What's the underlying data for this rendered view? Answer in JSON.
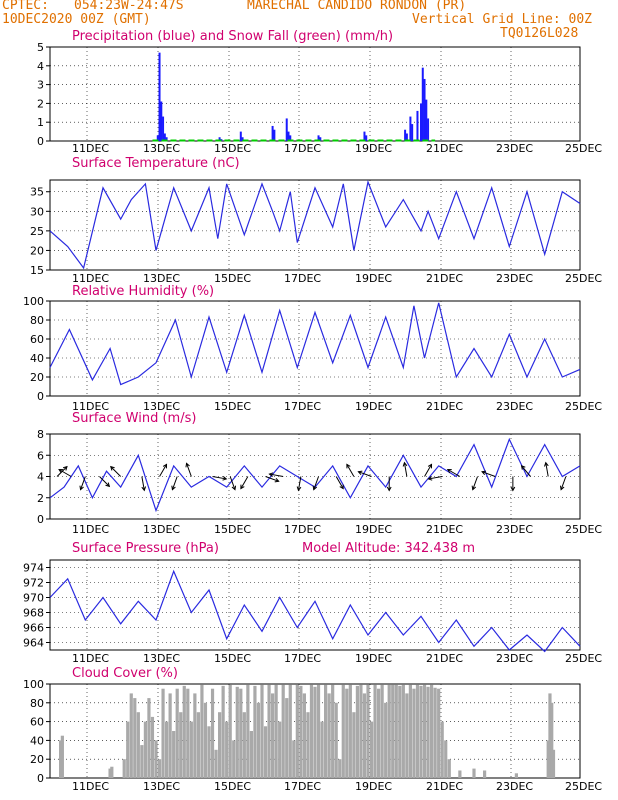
{
  "header": {
    "source": "CPTEC:",
    "coords": "054:23W-24:47S",
    "station": "MARECHAL CANDIDO RONDON (PR)",
    "init": "10DEC2020 00Z (GMT)",
    "grid_note": "Vertical Grid Line: 00Z",
    "code": "TQ0126L028"
  },
  "colors": {
    "header": "#e07000",
    "title": "#d0006e",
    "precip": "#1a1aff",
    "snow": "#00cc00",
    "line": "#2a2ae0",
    "cloud": "#a9a9a9"
  },
  "x_ticks": [
    "11DEC",
    "13DEC",
    "15DEC",
    "17DEC",
    "19DEC",
    "21DEC",
    "23DEC",
    "25DEC"
  ],
  "chart_data": [
    {
      "type": "bar",
      "title": "Precipitation (blue) and Snow Fall (green) (mm/h)",
      "ylim": [
        0,
        5
      ],
      "yticks": [
        "0",
        "1",
        "2",
        "3",
        "4",
        "5"
      ],
      "x_unit": "days since 10DEC 00Z",
      "series": [
        {
          "name": "Precipitation",
          "x": [
            3.05,
            3.1,
            3.15,
            3.2,
            3.25,
            3.3,
            4.8,
            4.85,
            5.4,
            5.45,
            6.3,
            6.35,
            6.7,
            6.75,
            6.8,
            7.6,
            7.65,
            8.9,
            8.95,
            10.05,
            10.1,
            10.2,
            10.25,
            10.4,
            10.5,
            10.55,
            10.6,
            10.65,
            10.7
          ],
          "values": [
            0.3,
            4.7,
            2.1,
            1.3,
            0.4,
            0.2,
            0.2,
            0.1,
            0.5,
            0.2,
            0.8,
            0.6,
            1.2,
            0.5,
            0.3,
            0.3,
            0.2,
            0.5,
            0.3,
            0.6,
            0.4,
            1.3,
            0.9,
            1.6,
            2.0,
            3.9,
            3.3,
            2.2,
            1.2
          ]
        },
        {
          "name": "Snow Fall",
          "values": [
            0
          ]
        }
      ]
    },
    {
      "type": "line",
      "title": "Surface Temperature (nC)",
      "ylim": [
        15,
        38
      ],
      "yticks": [
        "15",
        "20",
        "25",
        "30",
        "35"
      ],
      "series": [
        {
          "name": "Temperature",
          "x": [
            0,
            0.5,
            0.95,
            1.5,
            2,
            2.3,
            2.7,
            3,
            3.5,
            4,
            4.5,
            4.75,
            5,
            5.5,
            6,
            6.3,
            6.5,
            6.8,
            7,
            7.5,
            8,
            8.3,
            8.6,
            9,
            9.5,
            10,
            10.5,
            10.7,
            11,
            11.5,
            12,
            12.5,
            13,
            13.5,
            14,
            14.5,
            15
          ],
          "values": [
            25,
            21,
            15.5,
            36,
            28,
            33,
            37,
            20,
            36,
            25,
            36,
            23,
            37,
            24,
            37,
            30,
            25,
            35,
            22,
            36,
            26,
            37,
            20,
            37.5,
            26,
            33,
            25,
            30,
            23,
            35,
            23,
            36,
            21,
            35,
            19,
            35,
            32
          ]
        }
      ]
    },
    {
      "type": "line",
      "title": "Relative Humidity (%)",
      "ylim": [
        0,
        100
      ],
      "yticks": [
        "0",
        "20",
        "40",
        "60",
        "80",
        "100"
      ],
      "series": [
        {
          "name": "Relative Humidity",
          "x": [
            0,
            0.55,
            1.2,
            1.7,
            2,
            2.5,
            3,
            3.55,
            4,
            4.5,
            5,
            5.5,
            6,
            6.5,
            7,
            7.5,
            8,
            8.5,
            9,
            9.5,
            10,
            10.3,
            10.6,
            11,
            11.5,
            12,
            12.5,
            13,
            13.5,
            14,
            14.5,
            15
          ],
          "values": [
            30,
            70,
            17,
            50,
            12,
            20,
            35,
            80,
            20,
            83,
            25,
            85,
            25,
            90,
            30,
            88,
            35,
            85,
            30,
            83,
            30,
            95,
            40,
            98,
            20,
            50,
            20,
            65,
            20,
            60,
            20,
            28
          ]
        }
      ]
    },
    {
      "type": "line",
      "title": "Surface Wind (m/s)",
      "ylim": [
        0,
        8
      ],
      "yticks": [
        "0",
        "2",
        "4",
        "6",
        "8"
      ],
      "series": [
        {
          "name": "Wind Speed",
          "x": [
            0,
            0.4,
            0.8,
            1.2,
            1.6,
            2,
            2.5,
            3,
            3.5,
            4,
            4.5,
            5,
            5.5,
            6,
            6.5,
            7,
            7.5,
            8,
            8.5,
            9,
            9.5,
            10,
            10.5,
            11,
            11.5,
            12,
            12.5,
            13,
            13.5,
            14,
            14.5,
            15
          ],
          "values": [
            2,
            3,
            5,
            2,
            4.5,
            3,
            6,
            0.8,
            5,
            3,
            4,
            3,
            5,
            3,
            5,
            4,
            3,
            5,
            2,
            5,
            3,
            6,
            3,
            5,
            4,
            7,
            3,
            7.5,
            4,
            7,
            4,
            5
          ]
        }
      ],
      "vectors_x": [
        0.2,
        0.6,
        1,
        1.4,
        2,
        2.6,
        3.1,
        3.6,
        4,
        4.6,
        5.1,
        5.6,
        6.1,
        6.6,
        7.1,
        7.6,
        8.1,
        8.6,
        9.1,
        9.6,
        10.1,
        10.6,
        11.1,
        11.6,
        12.1,
        12.6,
        13.1,
        13.6,
        14.1,
        14.6
      ],
      "vectors_dir": [
        45,
        -60,
        200,
        135,
        -45,
        170,
        30,
        200,
        -20,
        100,
        160,
        210,
        110,
        -80,
        190,
        200,
        150,
        -30,
        -70,
        180,
        -10,
        30,
        -100,
        -60,
        200,
        -70,
        180,
        -40,
        -10,
        200
      ]
    },
    {
      "type": "line",
      "title": "Surface Pressure (hPa)",
      "annotation": "Model Altitude: 342.438 m",
      "ylim": [
        963,
        975
      ],
      "yticks": [
        "964",
        "966",
        "968",
        "970",
        "972",
        "974"
      ],
      "series": [
        {
          "name": "Pressure",
          "x": [
            0,
            0.5,
            1,
            1.5,
            2,
            2.5,
            3,
            3.5,
            4,
            4.5,
            5,
            5.5,
            6,
            6.5,
            7,
            7.5,
            8,
            8.5,
            9,
            9.5,
            10,
            10.5,
            11,
            11.5,
            12,
            12.5,
            13,
            13.5,
            14,
            14.5,
            15
          ],
          "values": [
            970,
            972.5,
            967,
            970,
            966.5,
            969.5,
            967,
            973.5,
            968,
            971,
            964.5,
            969,
            965.5,
            970,
            966,
            969.5,
            964.5,
            969,
            965,
            968,
            965,
            967.5,
            964,
            967,
            963.5,
            966,
            963,
            965,
            962.8,
            966,
            963.5
          ]
        }
      ]
    },
    {
      "type": "bar",
      "title": "Cloud Cover (%)",
      "ylim": [
        0,
        100
      ],
      "yticks": [
        "0",
        "20",
        "40",
        "60",
        "80",
        "100"
      ],
      "series": [
        {
          "name": "Cloud Cover",
          "x": [
            0.3,
            0.35,
            1.7,
            1.75,
            2.1,
            2.2,
            2.3,
            2.4,
            2.5,
            2.6,
            2.7,
            2.8,
            2.9,
            3,
            3.1,
            3.2,
            3.3,
            3.4,
            3.5,
            3.6,
            3.7,
            3.8,
            3.9,
            4,
            4.1,
            4.2,
            4.3,
            4.4,
            4.5,
            4.6,
            4.7,
            4.8,
            4.9,
            5,
            5.1,
            5.2,
            5.3,
            5.4,
            5.5,
            5.6,
            5.7,
            5.8,
            5.9,
            6,
            6.1,
            6.2,
            6.3,
            6.4,
            6.5,
            6.6,
            6.7,
            6.8,
            6.9,
            7,
            7.1,
            7.2,
            7.3,
            7.4,
            7.5,
            7.6,
            7.7,
            7.8,
            7.9,
            8,
            8.1,
            8.2,
            8.3,
            8.4,
            8.5,
            8.6,
            8.7,
            8.8,
            8.9,
            9,
            9.1,
            9.2,
            9.3,
            9.4,
            9.5,
            9.6,
            9.7,
            9.8,
            9.9,
            10,
            10.1,
            10.2,
            10.3,
            10.4,
            10.5,
            10.6,
            10.7,
            10.8,
            10.9,
            11,
            11.1,
            11.2,
            11.3,
            11.6,
            12,
            12.3,
            13.2,
            14.1,
            14.15,
            14.2,
            14.25
          ],
          "values": [
            40,
            45,
            10,
            12,
            20,
            60,
            90,
            85,
            70,
            35,
            60,
            85,
            65,
            40,
            20,
            95,
            60,
            90,
            50,
            95,
            70,
            98,
            95,
            60,
            90,
            70,
            99,
            80,
            55,
            95,
            30,
            70,
            98,
            60,
            99,
            40,
            97,
            95,
            70,
            99,
            50,
            98,
            80,
            99,
            55,
            99,
            90,
            99,
            60,
            99,
            85,
            99,
            40,
            99,
            98,
            90,
            70,
            99,
            97,
            99,
            60,
            99,
            90,
            99,
            80,
            20,
            99,
            95,
            99,
            70,
            98,
            99,
            90,
            99,
            60,
            99,
            95,
            99,
            80,
            99,
            99,
            99,
            98,
            99,
            90,
            99,
            95,
            99,
            98,
            99,
            97,
            99,
            96,
            95,
            60,
            40,
            20,
            8,
            10,
            8,
            5,
            40,
            90,
            80,
            30
          ]
        }
      ]
    }
  ]
}
